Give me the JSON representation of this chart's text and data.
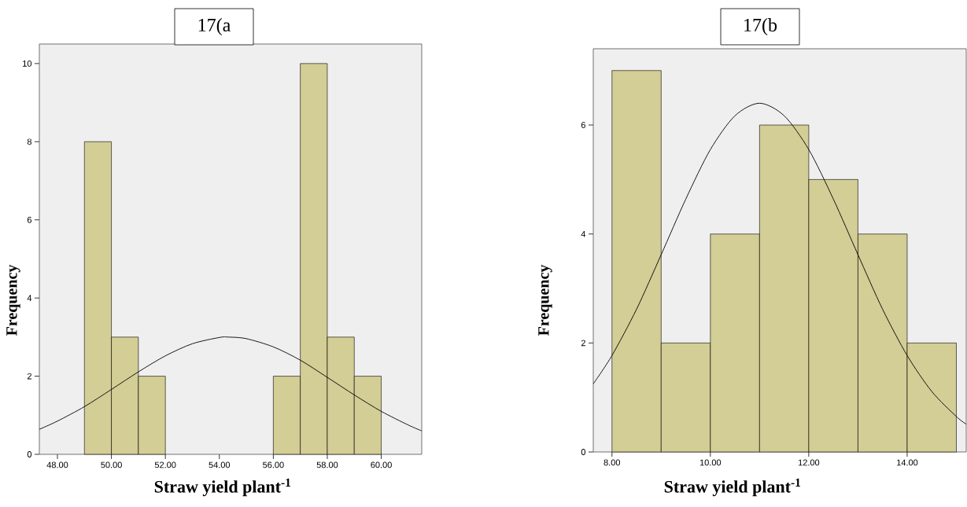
{
  "chart_data": [
    {
      "type": "histogram",
      "title": "17(a",
      "xlabel": "Straw yield plant$^{-1}$",
      "ylabel": "Frequency",
      "series": [
        {
          "color": "#d3cd96",
          "bins": [
            49,
            50,
            51,
            52,
            53,
            54,
            55,
            56,
            57,
            58,
            59,
            60
          ],
          "values": [
            8,
            3,
            2,
            0,
            0,
            0,
            0,
            2,
            10,
            3,
            2
          ]
        },
        {
          "type": "line",
          "color": "#000000",
          "x": [
            47.33,
            48,
            49,
            50,
            51,
            52,
            53,
            54,
            54.35,
            55,
            56,
            57,
            58,
            59,
            60,
            61,
            61.5
          ],
          "values": [
            0.64,
            0.85,
            1.22,
            1.66,
            2.11,
            2.52,
            2.83,
            2.99,
            3.0,
            2.96,
            2.75,
            2.41,
            1.97,
            1.52,
            1.1,
            0.75,
            0.6
          ]
        }
      ],
      "xlim": [
        47.33,
        61.5
      ],
      "ylim": [
        0,
        10.5
      ],
      "xticks": [
        {
          "value": 48,
          "label": "48.00"
        },
        {
          "value": 50,
          "label": "50.00"
        },
        {
          "value": 52,
          "label": "52.00"
        },
        {
          "value": 54,
          "label": "54.00"
        },
        {
          "value": 56,
          "label": "56.00"
        },
        {
          "value": 58,
          "label": "58.00"
        },
        {
          "value": 60,
          "label": "60.00"
        }
      ],
      "yticks": [
        0,
        2,
        4,
        6,
        8,
        10
      ],
      "grid": false
    },
    {
      "type": "histogram",
      "title": "17(b",
      "xlabel": "Straw yield plant$^{-1}$",
      "ylabel": "Frequency",
      "series": [
        {
          "color": "#d3cd96",
          "bins": [
            8,
            9,
            10,
            11,
            12,
            13,
            14,
            15
          ],
          "values": [
            7,
            2,
            4,
            6,
            5,
            4,
            2
          ]
        },
        {
          "type": "line",
          "color": "#000000",
          "x": [
            7.62,
            8,
            8.5,
            9,
            9.5,
            10,
            10.5,
            11,
            11.5,
            12,
            12.5,
            13,
            13.5,
            14,
            14.5,
            15,
            15.2
          ],
          "values": [
            1.25,
            1.77,
            2.62,
            3.62,
            4.64,
            5.55,
            6.17,
            6.4,
            6.17,
            5.55,
            4.64,
            3.62,
            2.62,
            1.77,
            1.11,
            0.65,
            0.51
          ]
        }
      ],
      "xlim": [
        7.62,
        15.2
      ],
      "ylim": [
        0,
        7.4
      ],
      "xticks": [
        {
          "value": 8,
          "label": "8.00"
        },
        {
          "value": 10,
          "label": "10.00"
        },
        {
          "value": 12,
          "label": "12.00"
        },
        {
          "value": 14,
          "label": "14.00"
        }
      ],
      "yticks": [
        0,
        2,
        4,
        6
      ],
      "grid": false
    }
  ]
}
